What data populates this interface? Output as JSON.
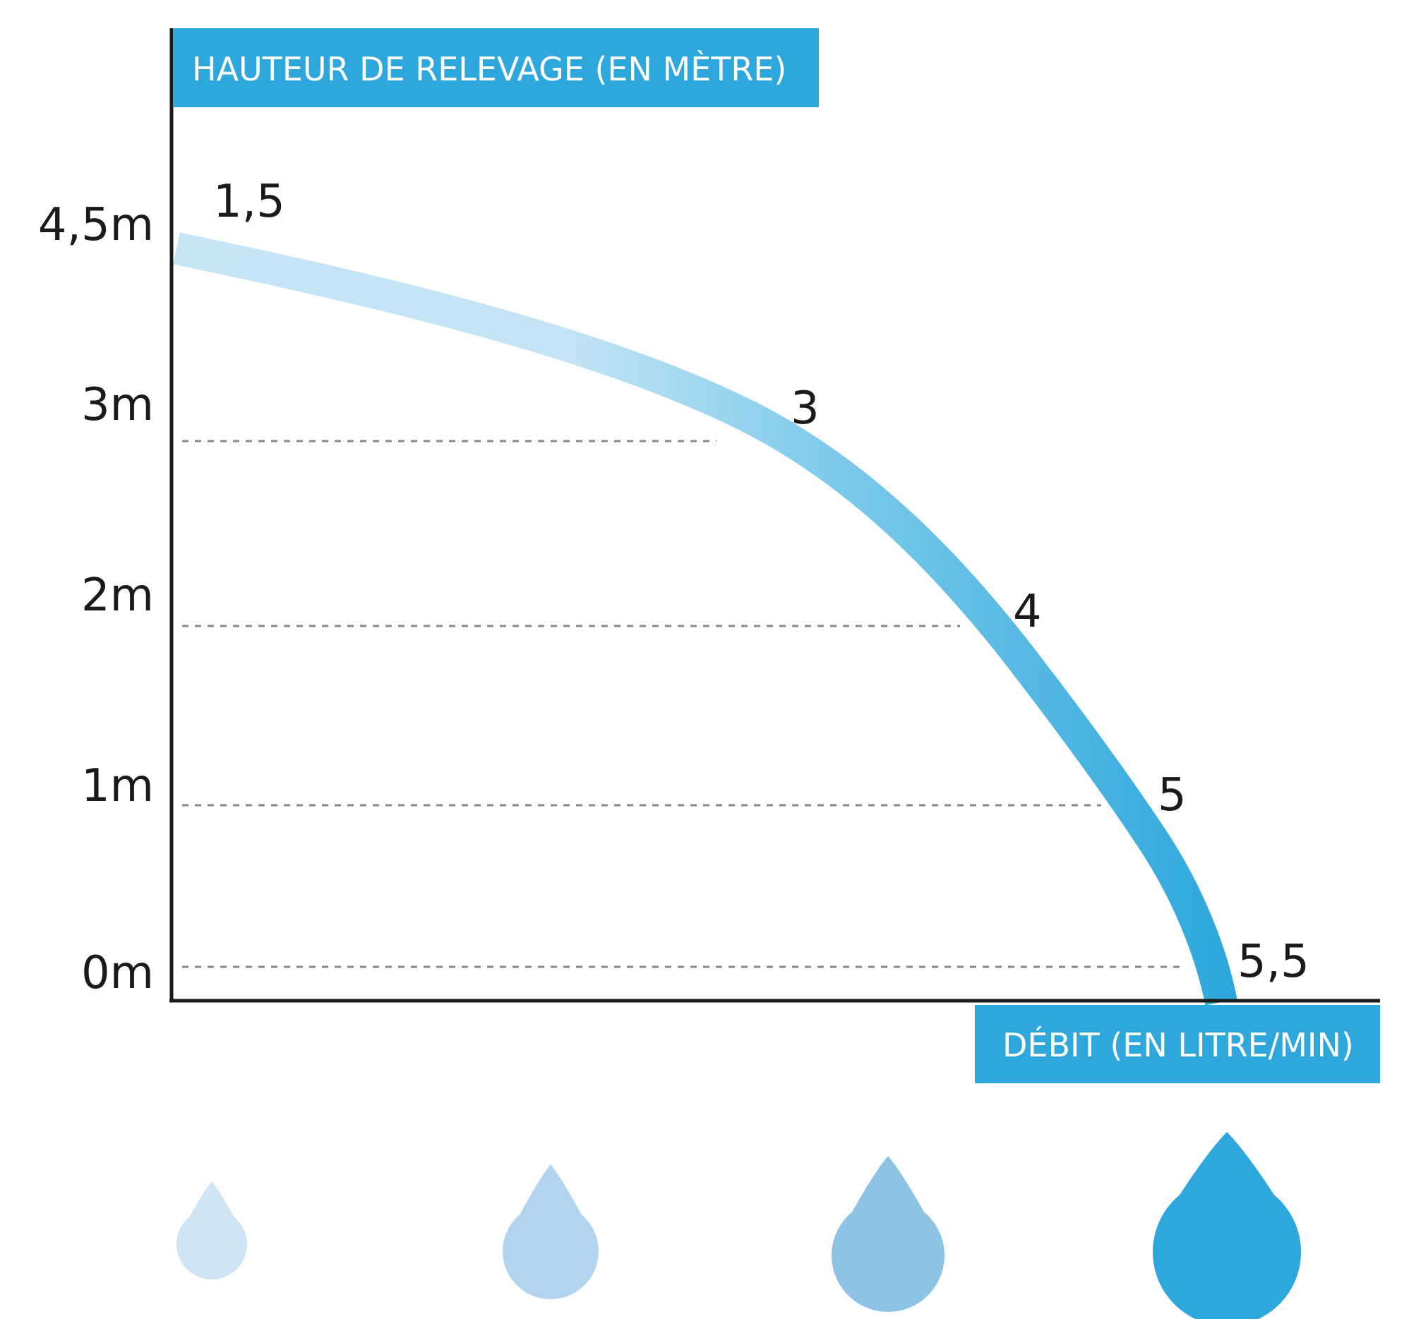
{
  "chart_data": {
    "type": "line",
    "y_axis_title": "HAUTEUR DE RELEVAGE (EN MÈTRE)",
    "x_axis_title": "DÉBIT (EN LITRE/MIN)",
    "y_tick_labels": [
      "0m",
      "1m",
      "2m",
      "3m",
      "4,5m"
    ],
    "y_tick_values": [
      0,
      1,
      2,
      3,
      4.5
    ],
    "points": [
      {
        "label": "1,5",
        "flow": 1.5,
        "height": 4.5
      },
      {
        "label": "3",
        "flow": 3,
        "height": 3
      },
      {
        "label": "4",
        "flow": 4,
        "height": 2
      },
      {
        "label": "5",
        "flow": 5,
        "height": 1
      },
      {
        "label": "5,5",
        "flow": 5.5,
        "height": 0
      }
    ],
    "grid": "dashed horizontal reference lines",
    "colors": {
      "axis_title_bg": "#2ea8dc",
      "curve_start": "#c6e6f6",
      "curve_end": "#2ea8dc",
      "axis": "#1a1a1a",
      "grid": "#888888",
      "drops": [
        "#d0e5f4",
        "#b2d4ee",
        "#8fc3e6",
        "#2ea8dc"
      ]
    },
    "decoration_icons": [
      "water-drop-icon",
      "water-drop-icon",
      "water-drop-icon",
      "water-drop-icon"
    ]
  }
}
